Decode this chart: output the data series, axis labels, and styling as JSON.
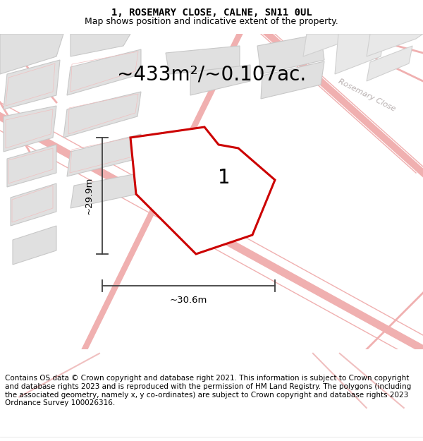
{
  "title": "1, ROSEMARY CLOSE, CALNE, SN11 0UL",
  "subtitle": "Map shows position and indicative extent of the property.",
  "area_text": "~433m²/~0.107ac.",
  "dim_v": "~29.9m",
  "dim_h": "~30.6m",
  "plot_number": "1",
  "footer": "Contains OS data © Crown copyright and database right 2021. This information is subject to Crown copyright and database rights 2023 and is reproduced with the permission of HM Land Registry. The polygons (including the associated geometry, namely x, y co-ordinates) are subject to Crown copyright and database rights 2023 Ordnance Survey 100026316.",
  "bg_color": "#f7f7f7",
  "plot_edge_color": "#cc0000",
  "plot_fill": "#ffffff",
  "road_color": "#f5c8c8",
  "road_edge": "#e8a8a8",
  "building_fill": "#e0e0e0",
  "building_edge": "#c8c8c8",
  "building_inner_edge": "#e0a8a8",
  "dim_color": "#404040",
  "label_color": "#c8b8b8",
  "title_fontsize": 10,
  "subtitle_fontsize": 9,
  "area_fontsize": 20,
  "dim_fontsize": 9.5,
  "plot_label_fontsize": 20,
  "footer_fontsize": 7.5,
  "road_label_fontsize": 8
}
